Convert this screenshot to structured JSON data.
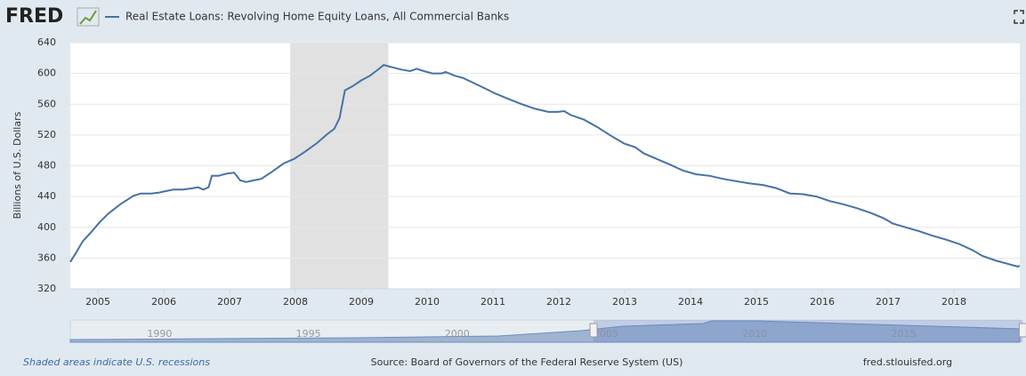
{
  "logo": "FRED",
  "chart_data": {
    "type": "line",
    "y_label": "Billions of U.S. Dollars",
    "series": [
      {
        "name": "Real Estate Loans: Revolving Home Equity Loans, All Commercial Banks",
        "color": "#4572a7",
        "x": [
          2004.58,
          2004.66,
          2004.77,
          2004.89,
          2005.03,
          2005.16,
          2005.34,
          2005.54,
          2005.65,
          2005.81,
          2005.92,
          2006.02,
          2006.15,
          2006.29,
          2006.42,
          2006.52,
          2006.6,
          2006.68,
          2006.73,
          2006.83,
          2006.96,
          2007.07,
          2007.16,
          2007.25,
          2007.37,
          2007.48,
          2007.64,
          2007.82,
          2007.98,
          2008.14,
          2008.32,
          2008.48,
          2008.59,
          2008.67,
          2008.75,
          2008.86,
          2009.0,
          2009.13,
          2009.27,
          2009.34,
          2009.47,
          2009.61,
          2009.74,
          2009.84,
          2009.95,
          2010.08,
          2010.22,
          2010.28,
          2010.42,
          2010.55,
          2010.72,
          2010.89,
          2011.03,
          2011.23,
          2011.44,
          2011.64,
          2011.84,
          2011.98,
          2012.08,
          2012.18,
          2012.38,
          2012.59,
          2012.79,
          2012.99,
          2013.16,
          2013.29,
          2013.51,
          2013.7,
          2013.88,
          2014.08,
          2014.29,
          2014.49,
          2014.69,
          2014.9,
          2015.1,
          2015.3,
          2015.51,
          2015.71,
          2015.91,
          2016.12,
          2016.32,
          2016.52,
          2016.73,
          2016.93,
          2017.07,
          2017.27,
          2017.47,
          2017.68,
          2017.88,
          2018.09,
          2018.29,
          2018.43,
          2018.63,
          2018.84,
          2018.97,
          2019.0
        ],
        "values": [
          355,
          366,
          382,
          393,
          407,
          418,
          430,
          441,
          444,
          444,
          445,
          447,
          449,
          449,
          450.5,
          452,
          449,
          452,
          467,
          467,
          470,
          471,
          461,
          459,
          461,
          463,
          472,
          483,
          489,
          498,
          509,
          521,
          528,
          542,
          578,
          583,
          591,
          597,
          606,
          611,
          608,
          605,
          603,
          606,
          603,
          600,
          600,
          602,
          597,
          594,
          587,
          580,
          574,
          567,
          560,
          554,
          550,
          550,
          551,
          546,
          540,
          530,
          519,
          509,
          504,
          496,
          488,
          481,
          474,
          469,
          467,
          463,
          460,
          457,
          455,
          451,
          444,
          443,
          440,
          434,
          430,
          425,
          419,
          412,
          405,
          400,
          395,
          389,
          384,
          378,
          370,
          363,
          357,
          352,
          349,
          350
        ]
      }
    ],
    "xlim": [
      2004.58,
      2019.0
    ],
    "xticks": [
      2005,
      2006,
      2007,
      2008,
      2009,
      2010,
      2011,
      2012,
      2013,
      2014,
      2015,
      2016,
      2017,
      2018
    ],
    "ylim": [
      320,
      640
    ],
    "yticks": [
      320,
      360,
      400,
      440,
      480,
      520,
      560,
      600,
      640
    ],
    "grid": true,
    "recessions": [
      [
        2007.92,
        2009.41
      ]
    ],
    "navigator": {
      "xlim": [
        1987.0,
        2018.9
      ],
      "xticks": [
        1990,
        1995,
        2000,
        2005,
        2010,
        2015
      ]
    },
    "recession_note": "Shaded areas indicate U.S. recessions",
    "source": "Source: Board of Governors of the Federal Reserve System (US)",
    "url": "fred.stlouisfed.org"
  }
}
